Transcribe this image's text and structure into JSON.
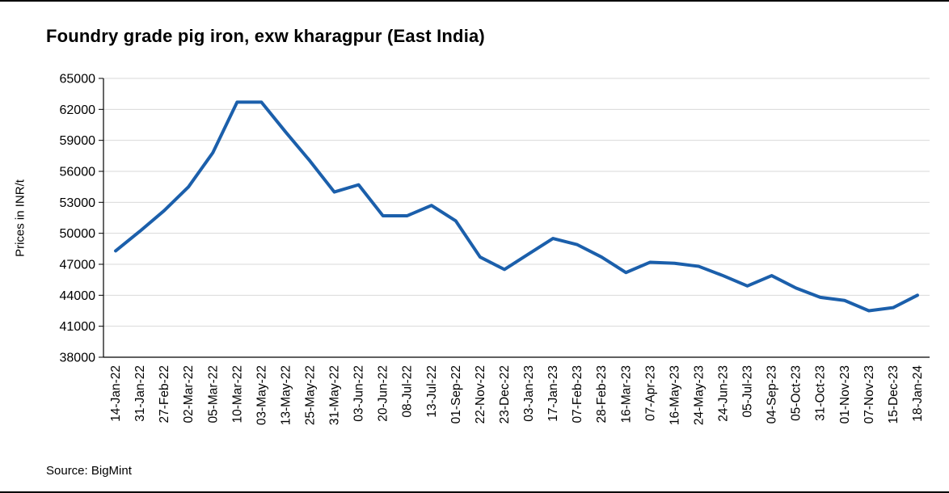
{
  "header": {
    "title": "Foundry grade pig iron, exw kharagpur (East India)"
  },
  "footer": {
    "source": "Source: BigMint"
  },
  "chart_data": {
    "type": "line",
    "title": "Foundry grade pig iron, exw kharagpur (East India)",
    "xlabel": "",
    "ylabel": "Prices in INR/t",
    "ylim": [
      38000,
      65000
    ],
    "ytick_step": 3000,
    "grid": true,
    "legend": "none",
    "line_color": "#1b5fab",
    "grid_color": "#d9d9d9",
    "axis_color": "#000000",
    "categories": [
      "14-Jan-22",
      "31-Jan-22",
      "27-Feb-22",
      "02-Mar-22",
      "05-Mar-22",
      "10-Mar-22",
      "03-May-22",
      "13-May-22",
      "25-May-22",
      "31-May-22",
      "03-Jun-22",
      "20-Jun-22",
      "08-Jul-22",
      "13-Jul-22",
      "01-Sep-22",
      "22-Nov-22",
      "23-Dec-22",
      "03-Jan-23",
      "17-Jan-23",
      "07-Feb-23",
      "28-Feb-23",
      "16-Mar-23",
      "07-Apr-23",
      "16-May-23",
      "24-May-23",
      "24-Jun-23",
      "24-Jun-23b",
      "05-Jul-23",
      "04-Sep-23",
      "05-Oct-23",
      "31-Oct-23",
      "01-Nov-23",
      "07-Nov-23",
      "15-Dec-23"
    ],
    "categories_display": [
      "14-Jan-22",
      "31-Jan-22",
      "27-Feb-22",
      "02-Mar-22",
      "05-Mar-22",
      "10-Mar-22",
      "03-May-22",
      "13-May-22",
      "25-May-22",
      "31-May-22",
      "03-Jun-22",
      "20-Jun-22",
      "08-Jul-22",
      "13-Jul-22",
      "01-Sep-22",
      "22-Nov-22",
      "23-Dec-22",
      "03-Jan-23",
      "17-Jan-23",
      "07-Feb-23",
      "28-Feb-23",
      "16-Mar-23",
      "07-Apr-23",
      "16-May-23",
      "24-May-23",
      "24-Jun-23",
      "05-Jul-23",
      "04-Sep-23",
      "05-Oct-23",
      "31-Oct-23",
      "01-Nov-23",
      "07-Nov-23",
      "15-Dec-23",
      "18-Jan-24"
    ],
    "values": [
      48300,
      50200,
      52200,
      54500,
      57800,
      62700,
      62700,
      59800,
      57000,
      54000,
      54700,
      51700,
      51700,
      52700,
      51200,
      47700,
      46500,
      48000,
      49500,
      48900,
      47700,
      46200,
      47200,
      47100,
      46800,
      45900,
      44900,
      45900,
      44700,
      43800,
      43500,
      42500,
      42800,
      44000
    ]
  }
}
